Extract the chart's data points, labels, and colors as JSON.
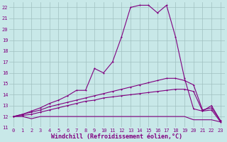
{
  "bg_color": "#c8e8e8",
  "line_color": "#800080",
  "grid_color": "#a0c0c0",
  "xlim": [
    -0.5,
    23.5
  ],
  "ylim": [
    11,
    22.5
  ],
  "xticks": [
    0,
    1,
    2,
    3,
    4,
    5,
    6,
    7,
    8,
    9,
    10,
    11,
    12,
    13,
    14,
    15,
    16,
    17,
    18,
    19,
    20,
    21,
    22,
    23
  ],
  "yticks": [
    11,
    12,
    13,
    14,
    15,
    16,
    17,
    18,
    19,
    20,
    21,
    22
  ],
  "xlabel": "Windchill (Refroidissement éolien,°C)",
  "line1_x": [
    0,
    1,
    2,
    3,
    4,
    5,
    6,
    7,
    8,
    9,
    10,
    11,
    12,
    13,
    14,
    15,
    16,
    17,
    18,
    19,
    20,
    21,
    22,
    23
  ],
  "line1_y": [
    12.0,
    12.2,
    12.5,
    12.8,
    13.2,
    13.5,
    13.9,
    14.4,
    14.4,
    16.4,
    16.0,
    17.0,
    19.3,
    22.0,
    22.2,
    22.2,
    21.5,
    22.2,
    19.3,
    15.5,
    12.7,
    12.5,
    13.0,
    11.6
  ],
  "line2_x": [
    0,
    1,
    2,
    3,
    4,
    5,
    6,
    7,
    8,
    9,
    10,
    11,
    12,
    13,
    14,
    15,
    16,
    17,
    18,
    19,
    20,
    21,
    22,
    23
  ],
  "line2_y": [
    12.0,
    12.2,
    12.4,
    12.6,
    12.9,
    13.1,
    13.3,
    13.5,
    13.7,
    13.9,
    14.1,
    14.3,
    14.5,
    14.7,
    14.9,
    15.1,
    15.3,
    15.5,
    15.5,
    15.3,
    14.9,
    12.6,
    12.8,
    11.6
  ],
  "line3_x": [
    0,
    1,
    2,
    3,
    4,
    5,
    6,
    7,
    8,
    9,
    10,
    11,
    12,
    13,
    14,
    15,
    16,
    17,
    18,
    19,
    20,
    21,
    22,
    23
  ],
  "line3_y": [
    12.0,
    12.1,
    12.2,
    12.4,
    12.6,
    12.8,
    13.0,
    13.2,
    13.4,
    13.5,
    13.7,
    13.8,
    13.9,
    14.0,
    14.1,
    14.2,
    14.3,
    14.4,
    14.5,
    14.5,
    14.3,
    12.5,
    12.6,
    11.5
  ],
  "line4_x": [
    0,
    1,
    2,
    3,
    4,
    5,
    6,
    7,
    8,
    9,
    10,
    11,
    12,
    13,
    14,
    15,
    16,
    17,
    18,
    19,
    20,
    21,
    22,
    23
  ],
  "line4_y": [
    12.0,
    12.0,
    11.8,
    12.0,
    12.0,
    12.0,
    12.0,
    12.0,
    12.0,
    12.0,
    12.0,
    12.0,
    12.0,
    12.0,
    12.0,
    12.0,
    12.0,
    12.0,
    12.0,
    12.0,
    11.7,
    11.7,
    11.7,
    11.5
  ],
  "tick_fontsize": 5.0,
  "xlabel_fontsize": 6.0
}
